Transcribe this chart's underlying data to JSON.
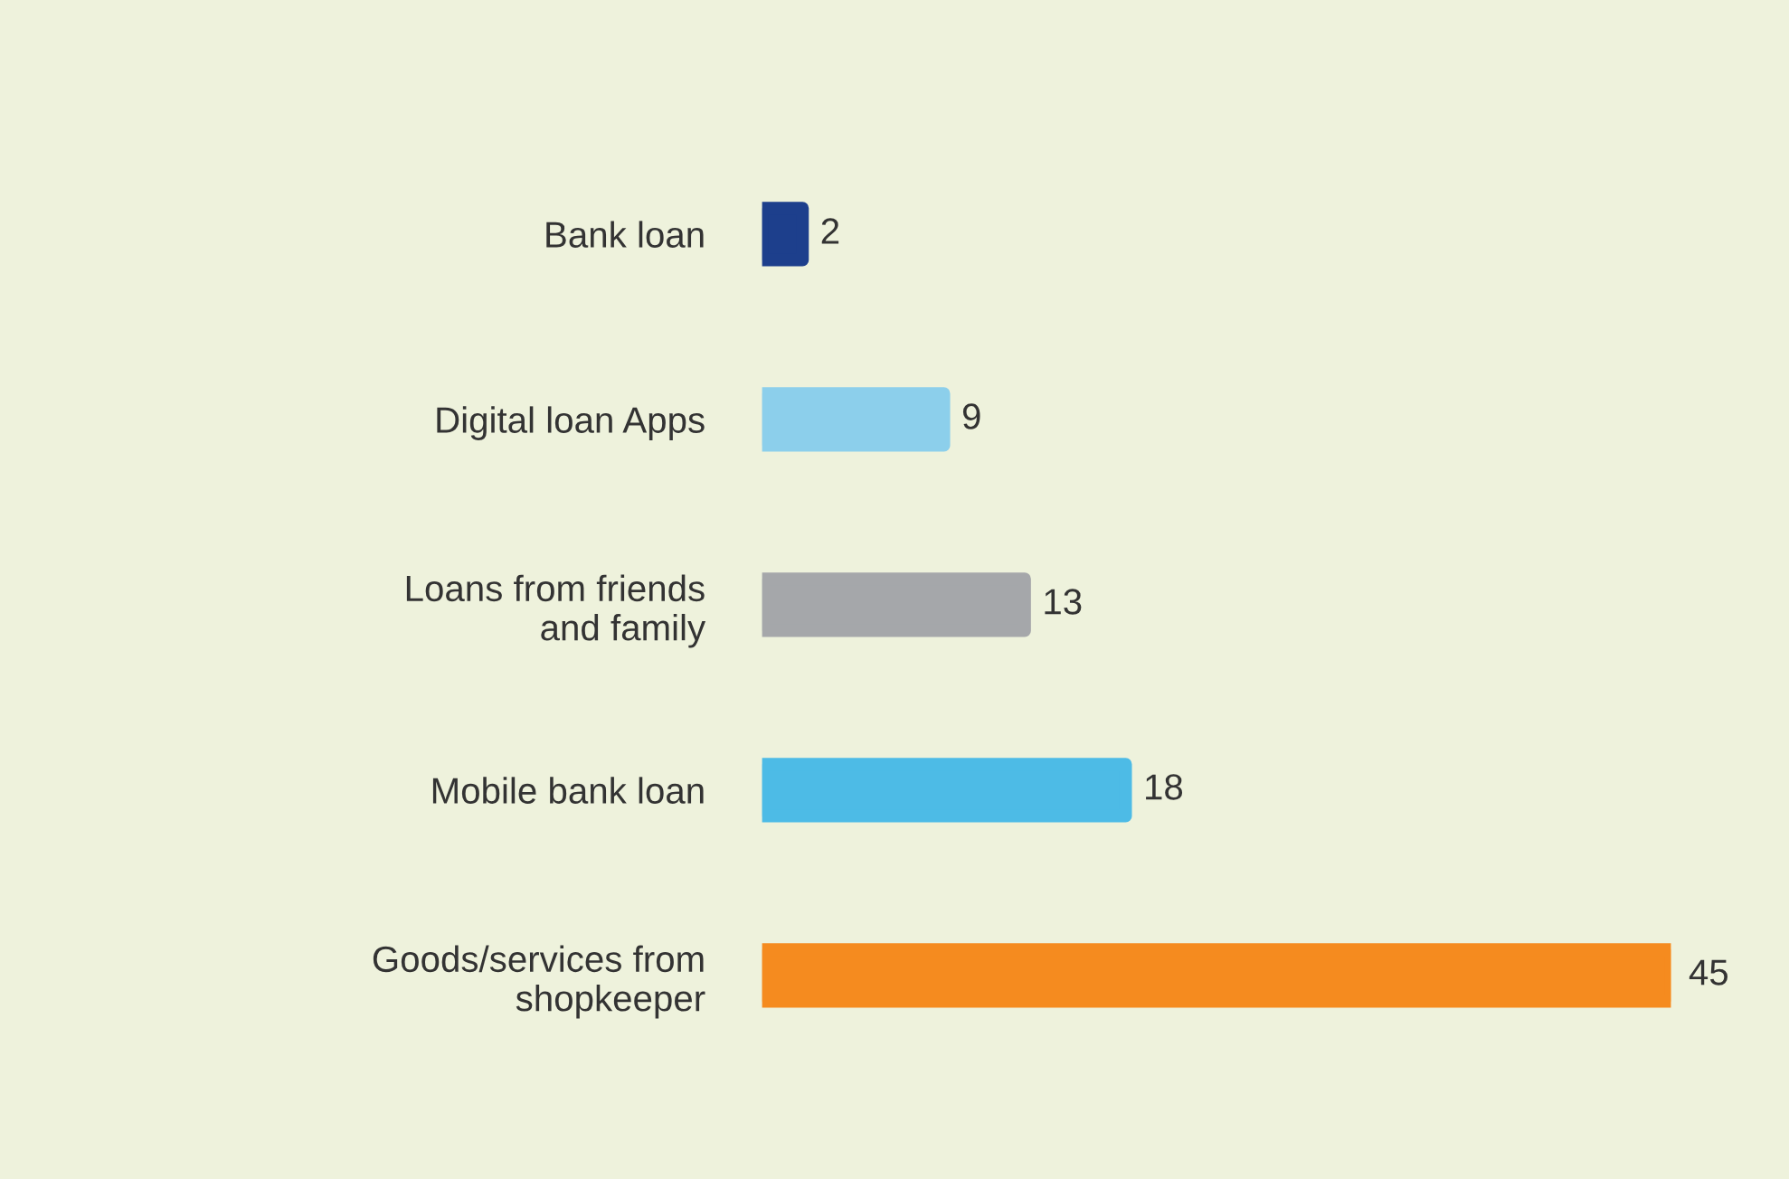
{
  "chart_data": {
    "type": "bar",
    "orientation": "horizontal",
    "categories": [
      "Bank loan",
      "Digital loan Apps",
      "Loans from friends\nand family",
      "Mobile bank loan",
      "Goods/services from\nshopkeeper"
    ],
    "values": [
      2,
      9,
      13,
      18,
      45
    ],
    "colors": [
      "#1d3f8c",
      "#8ccfeb",
      "#a5a7aa",
      "#4dbbe6",
      "#f58b1f"
    ],
    "data_labels": true,
    "grid": false,
    "legend": false
  }
}
